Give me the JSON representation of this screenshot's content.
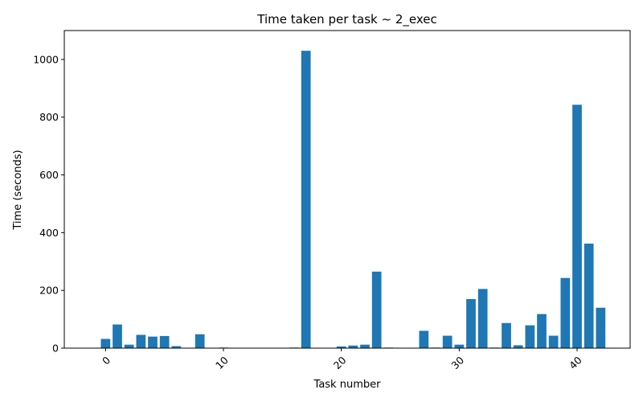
{
  "chart_data": {
    "type": "bar",
    "title": "Time taken per task ~ 2_exec",
    "xlabel": "Task number",
    "ylabel": "Time (seconds)",
    "xlim": [
      -3.5,
      44.5
    ],
    "ylim": [
      0,
      1100
    ],
    "x_ticks": [
      0,
      10,
      20,
      30,
      40
    ],
    "y_ticks": [
      0,
      200,
      400,
      600,
      800,
      1000
    ],
    "x_tick_rotation_deg": 45,
    "grid": false,
    "bar_color": "#1f77b4",
    "x": [
      0,
      1,
      2,
      3,
      4,
      5,
      6,
      7,
      8,
      9,
      10,
      11,
      12,
      13,
      14,
      15,
      16,
      17,
      18,
      19,
      20,
      21,
      22,
      23,
      24,
      25,
      26,
      27,
      28,
      29,
      30,
      31,
      32,
      33,
      34,
      35,
      36,
      37,
      38,
      39,
      40,
      41,
      42
    ],
    "values": [
      32,
      82,
      12,
      46,
      40,
      42,
      7,
      0,
      48,
      0,
      2,
      0,
      0,
      0,
      0,
      0,
      2,
      1030,
      0,
      0,
      6,
      9,
      12,
      265,
      2,
      0,
      0,
      60,
      2,
      43,
      12,
      170,
      205,
      2,
      87,
      10,
      79,
      118,
      43,
      243,
      843,
      362,
      140
    ]
  }
}
